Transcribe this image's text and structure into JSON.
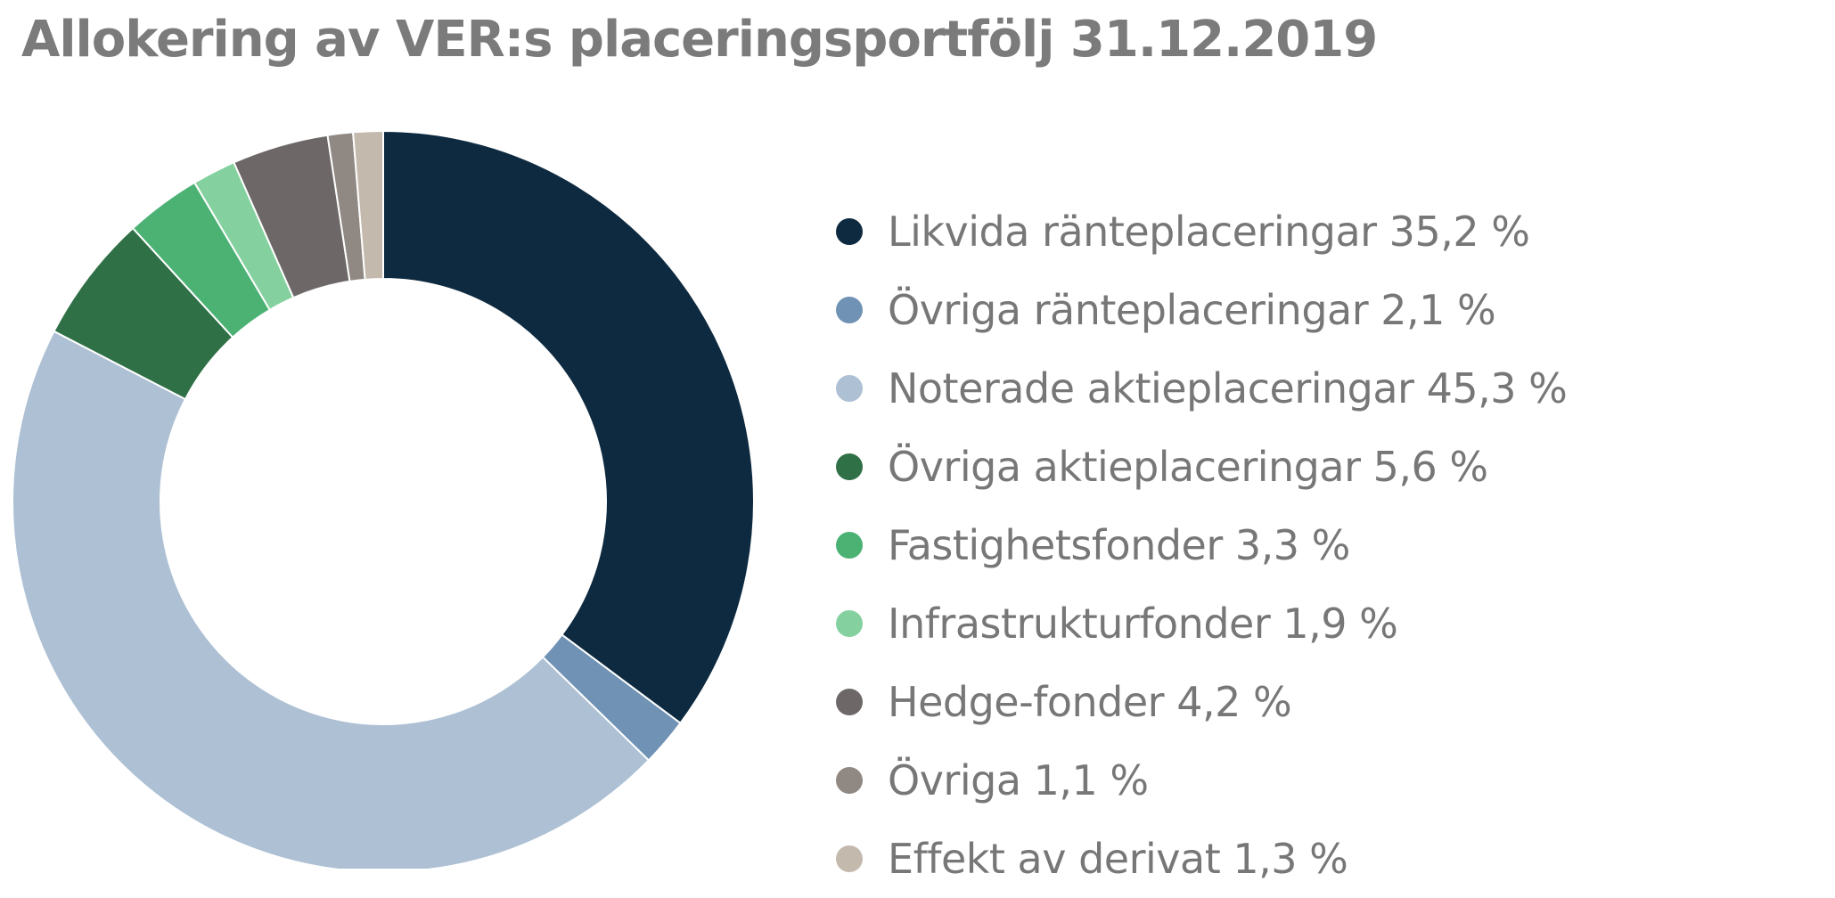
{
  "chart_data": {
    "type": "pie",
    "title": "Allokering av VER:s placeringsportfölj 31.12.2019",
    "legend_position": "right",
    "series": [
      {
        "name": "Likvida ränteplaceringar",
        "value": 35.2,
        "label": "Likvida ränteplaceringar 35,2 %",
        "color": "#0e2a40"
      },
      {
        "name": "Övriga ränteplaceringar",
        "value": 2.1,
        "label": "Övriga ränteplaceringar 2,1 %",
        "color": "#7092b4"
      },
      {
        "name": "Noterade aktieplaceringar",
        "value": 45.3,
        "label": "Noterade aktieplaceringar 45,3 %",
        "color": "#adc0d4"
      },
      {
        "name": "Övriga aktieplaceringar",
        "value": 5.6,
        "label": "Övriga aktieplaceringar 5,6 %",
        "color": "#2f7046"
      },
      {
        "name": "Fastighetsfonder",
        "value": 3.3,
        "label": "Fastighetsfonder 3,3 %",
        "color": "#4bb274"
      },
      {
        "name": "Infrastrukturfonder",
        "value": 1.9,
        "label": "Infrastrukturfonder 1,9 %",
        "color": "#84d19f"
      },
      {
        "name": "Hedge-fonder",
        "value": 4.2,
        "label": "Hedge-fonder 4,2 %",
        "color": "#6d6867"
      },
      {
        "name": "Övriga",
        "value": 1.1,
        "label": "Övriga 1,1 %",
        "color": "#908883"
      },
      {
        "name": "Effekt av derivat",
        "value": 1.3,
        "label": "Effekt av derivat 1,3 %",
        "color": "#c4b9ad"
      }
    ]
  }
}
